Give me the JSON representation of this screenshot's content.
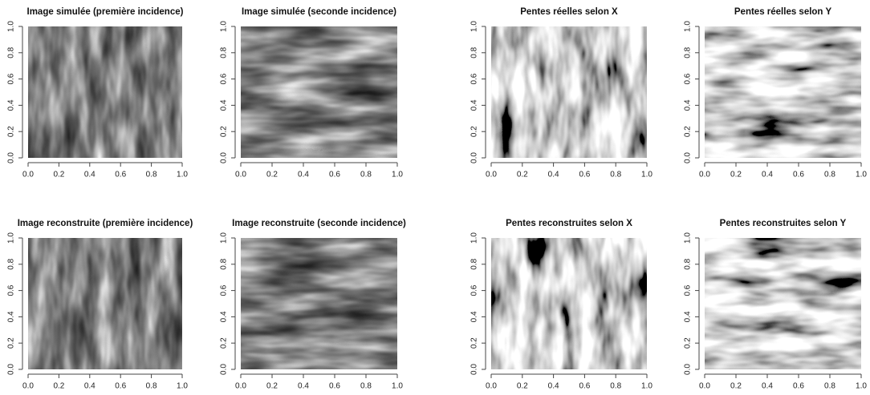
{
  "chart_data": [
    {
      "type": "image",
      "title": "Image simulée (première incidence)",
      "xlim": [
        0,
        1
      ],
      "ylim": [
        0,
        1
      ],
      "xticks": [
        {
          "value": 0,
          "label": "0.0"
        },
        0.2,
        0.4,
        0.6,
        0.8,
        {
          "value": 1,
          "label": "1.0"
        }
      ],
      "yticks": [
        {
          "value": 0,
          "label": "0.0"
        },
        0.2,
        0.4,
        0.6,
        0.8,
        {
          "value": 1,
          "label": "1.0"
        }
      ]
    },
    {
      "type": "image",
      "title": "Image simulée (seconde incidence)",
      "xlim": [
        0,
        1
      ],
      "ylim": [
        0,
        1
      ],
      "xticks": [
        {
          "value": 0,
          "label": "0.0"
        },
        0.2,
        0.4,
        0.6,
        0.8,
        {
          "value": 1,
          "label": "1.0"
        }
      ],
      "yticks": [
        {
          "value": 0,
          "label": "0.0"
        },
        0.2,
        0.4,
        0.6,
        0.8,
        {
          "value": 1,
          "label": "1.0"
        }
      ]
    },
    {
      "type": "image",
      "title": "Pentes réelles selon X",
      "xlim": [
        0,
        1
      ],
      "ylim": [
        0,
        1
      ],
      "xticks": [
        {
          "value": 0,
          "label": "0.0"
        },
        0.2,
        0.4,
        0.6,
        0.8,
        {
          "value": 1,
          "label": "1.0"
        }
      ],
      "yticks": [
        {
          "value": 0,
          "label": "0.0"
        },
        0.2,
        0.4,
        0.6,
        0.8,
        {
          "value": 1,
          "label": "1.0"
        }
      ]
    },
    {
      "type": "image",
      "title": "Pentes réelles selon Y",
      "xlim": [
        0,
        1
      ],
      "ylim": [
        0,
        1
      ],
      "xticks": [
        {
          "value": 0,
          "label": "0.0"
        },
        0.2,
        0.4,
        0.6,
        0.8,
        {
          "value": 1,
          "label": "1.0"
        }
      ],
      "yticks": [
        {
          "value": 0,
          "label": "0.0"
        },
        0.2,
        0.4,
        0.6,
        0.8,
        {
          "value": 1,
          "label": "1.0"
        }
      ]
    },
    {
      "type": "image",
      "title": "Image reconstruite (première incidence)",
      "xlim": [
        0,
        1
      ],
      "ylim": [
        0,
        1
      ],
      "xticks": [
        {
          "value": 0,
          "label": "0.0"
        },
        0.2,
        0.4,
        0.6,
        0.8,
        {
          "value": 1,
          "label": "1.0"
        }
      ],
      "yticks": [
        {
          "value": 0,
          "label": "0.0"
        },
        0.2,
        0.4,
        0.6,
        0.8,
        {
          "value": 1,
          "label": "1.0"
        }
      ]
    },
    {
      "type": "image",
      "title": "Image reconstruite (seconde incidence)",
      "xlim": [
        0,
        1
      ],
      "ylim": [
        0,
        1
      ],
      "xticks": [
        {
          "value": 0,
          "label": "0.0"
        },
        0.2,
        0.4,
        0.6,
        0.8,
        {
          "value": 1,
          "label": "1.0"
        }
      ],
      "yticks": [
        {
          "value": 0,
          "label": "0.0"
        },
        0.2,
        0.4,
        0.6,
        0.8,
        {
          "value": 1,
          "label": "1.0"
        }
      ]
    },
    {
      "type": "image",
      "title": "Pentes reconstruites selon X",
      "xlim": [
        0,
        1
      ],
      "ylim": [
        0,
        1
      ],
      "xticks": [
        {
          "value": 0,
          "label": "0.0"
        },
        0.2,
        0.4,
        0.6,
        0.8,
        {
          "value": 1,
          "label": "1.0"
        }
      ],
      "yticks": [
        {
          "value": 0,
          "label": "0.0"
        },
        0.2,
        0.4,
        0.6,
        0.8,
        {
          "value": 1,
          "label": "1.0"
        }
      ]
    },
    {
      "type": "image",
      "title": "Pentes reconstruites selon Y",
      "xlim": [
        0,
        1
      ],
      "ylim": [
        0,
        1
      ],
      "xticks": [
        {
          "value": 0,
          "label": "0.0"
        },
        0.2,
        0.4,
        0.6,
        0.8,
        {
          "value": 1,
          "label": "1.0"
        }
      ],
      "yticks": [
        {
          "value": 0,
          "label": "0.0"
        },
        0.2,
        0.4,
        0.6,
        0.8,
        {
          "value": 1,
          "label": "1.0"
        }
      ]
    }
  ]
}
